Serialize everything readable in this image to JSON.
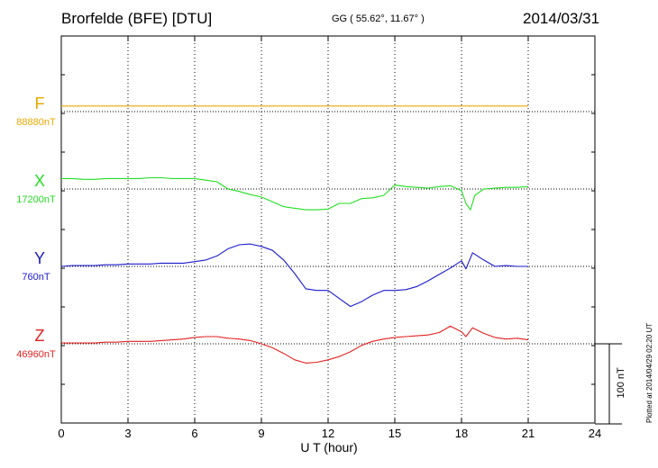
{
  "header": {
    "station": "Brorfelde (BFE)  [DTU]",
    "coords": "GG ( 55.62°,  11.67° )",
    "date": "2014/03/31"
  },
  "footnote": "Plotted at 2014/04/29 02:20 UT",
  "chart_data": {
    "type": "line",
    "title": "Brorfelde (BFE)  [DTU]",
    "xlabel": "U T (hour)",
    "xlim": [
      0,
      24
    ],
    "x_ticks": [
      0,
      3,
      6,
      9,
      12,
      15,
      18,
      21,
      24
    ],
    "x_tick_labels": [
      "0",
      "3",
      "6",
      "9",
      "12",
      "15",
      "18",
      "21",
      "24"
    ],
    "vertical_grid": "dotted",
    "scale_bar": {
      "label": "100 nT",
      "value_nT": 100
    },
    "panel_span_nT": 100,
    "series": [
      {
        "name": "F",
        "baseline_label": "88880nT",
        "color": "#e8a800",
        "x": [
          0,
          21
        ],
        "y": [
          7,
          7
        ]
      },
      {
        "name": "X",
        "baseline_label": "17200nT",
        "color": "#22dd22",
        "x": [
          0,
          0.5,
          1,
          1.5,
          2,
          2.5,
          3,
          3.5,
          4,
          4.5,
          5,
          5.5,
          6,
          6.5,
          7,
          7.5,
          8,
          8.5,
          9,
          9.5,
          10,
          10.5,
          11,
          11.5,
          12,
          12.5,
          13,
          13.5,
          14,
          14.5,
          15,
          15.5,
          16,
          16.5,
          17,
          17.5,
          18,
          18.2,
          18.4,
          18.6,
          19,
          19.5,
          20,
          20.5,
          21
        ],
        "y": [
          13,
          13,
          12,
          12,
          13,
          13,
          13,
          13,
          14,
          14,
          13,
          13,
          13,
          11,
          9,
          0,
          -3,
          -7,
          -10,
          -16,
          -22,
          -24,
          -26,
          -26,
          -25,
          -18,
          -18,
          -12,
          -11,
          -8,
          5,
          3,
          2,
          1,
          3,
          4,
          -2,
          -18,
          -26,
          -8,
          0,
          1,
          2,
          2,
          3
        ]
      },
      {
        "name": "Y",
        "baseline_label": "760nT",
        "color": "#1a1acc",
        "x": [
          0,
          0.5,
          1,
          1.5,
          2,
          2.5,
          3,
          3.5,
          4,
          4.5,
          5,
          5.5,
          6,
          6.5,
          7,
          7.5,
          8,
          8.5,
          9,
          9.5,
          10,
          10.5,
          11,
          11.5,
          12,
          12.5,
          13,
          13.5,
          14,
          14.5,
          15,
          15.5,
          16,
          16.5,
          17,
          17.5,
          18,
          18.2,
          18.5,
          19,
          19.5,
          20,
          20.5,
          21
        ],
        "y": [
          0,
          1,
          1,
          1,
          2,
          2,
          3,
          3,
          3,
          4,
          4,
          4,
          6,
          8,
          13,
          22,
          27,
          28,
          25,
          20,
          8,
          -9,
          -28,
          -30,
          -30,
          -40,
          -50,
          -44,
          -36,
          -30,
          -30,
          -29,
          -25,
          -18,
          -10,
          -2,
          7,
          -3,
          17,
          8,
          0,
          1,
          0,
          0
        ]
      },
      {
        "name": "Z",
        "baseline_label": "46960nT",
        "color": "#e02020",
        "x": [
          0,
          0.5,
          1,
          1.5,
          2,
          2.5,
          3,
          3.5,
          4,
          4.5,
          5,
          5.5,
          6,
          6.5,
          7,
          7.5,
          8,
          8.5,
          9,
          9.5,
          10,
          10.5,
          11,
          11.5,
          12,
          12.5,
          13,
          13.5,
          14,
          14.5,
          15,
          15.5,
          16,
          16.5,
          17,
          17.5,
          18,
          18.2,
          18.5,
          19,
          19.5,
          20,
          20.5,
          21
        ],
        "y": [
          1,
          1,
          1,
          1,
          2,
          2,
          3,
          3,
          3,
          4,
          5,
          6,
          8,
          9,
          9,
          7,
          6,
          4,
          0,
          -5,
          -12,
          -20,
          -24,
          -23,
          -20,
          -16,
          -10,
          -2,
          3,
          6,
          8,
          9,
          10,
          11,
          14,
          22,
          15,
          9,
          20,
          13,
          8,
          6,
          7,
          5
        ]
      }
    ]
  }
}
